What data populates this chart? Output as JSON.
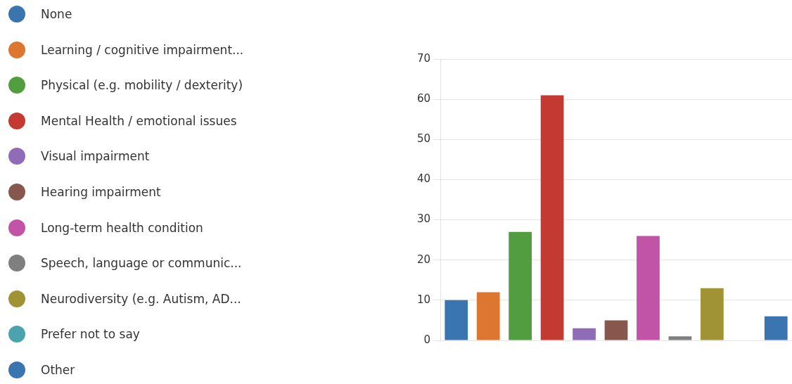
{
  "chart_data": {
    "type": "bar",
    "categories": [
      null
    ],
    "series": [
      {
        "name": "None",
        "color": "#3a75b0",
        "values": [
          10
        ]
      },
      {
        "name": "Learning / cognitive impairment...",
        "color": "#dd7730",
        "values": [
          12
        ]
      },
      {
        "name": "Physical (e.g. mobility / dexterity)",
        "color": "#529d3f",
        "values": [
          27
        ]
      },
      {
        "name": "Mental Health / emotional issues",
        "color": "#c33a33",
        "values": [
          61
        ]
      },
      {
        "name": "Visual impairment",
        "color": "#8f6bb8",
        "values": [
          3
        ]
      },
      {
        "name": "Hearing impairment",
        "color": "#86574d",
        "values": [
          5
        ]
      },
      {
        "name": "Long-term health condition",
        "color": "#c254a7",
        "values": [
          26
        ]
      },
      {
        "name": "Speech, language or communic...",
        "color": "#7f7f7f",
        "values": [
          1
        ]
      },
      {
        "name": "Neurodiversity (e.g. Autism, AD...",
        "color": "#a09336",
        "values": [
          13
        ]
      },
      {
        "name": "Prefer not to say",
        "color": "#4ba3ad",
        "values": [
          0
        ]
      },
      {
        "name": "Other",
        "color": "#3a75b0",
        "values": [
          6
        ]
      }
    ],
    "ylim": [
      0,
      70
    ],
    "yticks": [
      0,
      10,
      20,
      30,
      40,
      50,
      60,
      70
    ],
    "grid": "y",
    "legend": "left",
    "tick_labels": "y"
  }
}
